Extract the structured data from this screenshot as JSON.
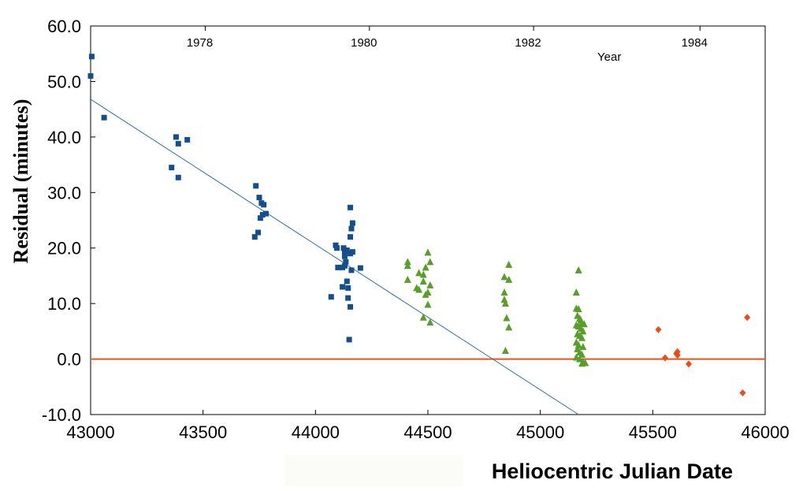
{
  "chart_data": {
    "type": "scatter",
    "title": "",
    "xlabel": "Heliocentric Julian Date",
    "ylabel": "Residual (minutes)",
    "top_axis_label": "Year",
    "xlim": [
      43000,
      46000
    ],
    "ylim": [
      -10,
      60
    ],
    "x_ticks": [
      43000,
      43500,
      44000,
      44500,
      45000,
      45500,
      46000
    ],
    "y_ticks": [
      "60.0",
      "50.0",
      "40.0",
      "30.0",
      "20.0",
      "10.0",
      "0.0",
      "-10.0"
    ],
    "year_ticks": [
      {
        "label": "1978",
        "x": 43510
      },
      {
        "label": "1980",
        "x": 44240
      },
      {
        "label": "1982",
        "x": 44970
      },
      {
        "label": "1984",
        "x": 45710
      }
    ],
    "zero_line": {
      "y": 0,
      "color": "#e8551e"
    },
    "fit_line": {
      "x": [
        43000,
        45170
      ],
      "y": [
        46.8,
        -10
      ],
      "color": "#2e6fa8"
    },
    "series": [
      {
        "name": "blue-squares",
        "marker": "square",
        "color": "#124f8c",
        "points": [
          [
            43005,
            54.5
          ],
          [
            43000,
            51
          ],
          [
            43060,
            43.5
          ],
          [
            43380,
            40
          ],
          [
            43390,
            38.8
          ],
          [
            43430,
            39.5
          ],
          [
            43360,
            34.5
          ],
          [
            43390,
            32.7
          ],
          [
            43735,
            31.2
          ],
          [
            43750,
            29.1
          ],
          [
            43760,
            28.1
          ],
          [
            43770,
            27.8
          ],
          [
            43780,
            26.2
          ],
          [
            43765,
            26
          ],
          [
            43755,
            25.4
          ],
          [
            43745,
            22.8
          ],
          [
            43730,
            22
          ],
          [
            44090,
            20.5
          ],
          [
            44095,
            20
          ],
          [
            44125,
            20
          ],
          [
            44130,
            19.3
          ],
          [
            44140,
            19.6
          ],
          [
            44155,
            19
          ],
          [
            44165,
            19.3
          ],
          [
            44155,
            22
          ],
          [
            44155,
            27.3
          ],
          [
            44165,
            24.5
          ],
          [
            44160,
            23.5
          ],
          [
            44130,
            18.5
          ],
          [
            44135,
            17.5
          ],
          [
            44130,
            16.8
          ],
          [
            44120,
            16.5
          ],
          [
            44100,
            16.5
          ],
          [
            44160,
            16
          ],
          [
            44200,
            16.4
          ],
          [
            44140,
            14
          ],
          [
            44120,
            13
          ],
          [
            44145,
            12.8
          ],
          [
            44070,
            11.2
          ],
          [
            44145,
            11
          ],
          [
            44155,
            9.4
          ],
          [
            44150,
            3.5
          ]
        ]
      },
      {
        "name": "green-triangles",
        "marker": "triangle",
        "color": "#5a9e2a",
        "points": [
          [
            44410,
            17.5
          ],
          [
            44410,
            16.8
          ],
          [
            44410,
            14.3
          ],
          [
            44450,
            12.8
          ],
          [
            44460,
            12.5
          ],
          [
            44460,
            15.5
          ],
          [
            44480,
            15.2
          ],
          [
            44480,
            14
          ],
          [
            44490,
            16.5
          ],
          [
            44490,
            11.6
          ],
          [
            44500,
            19.2
          ],
          [
            44510,
            17.5
          ],
          [
            44510,
            13.3
          ],
          [
            44500,
            12
          ],
          [
            44500,
            9.8
          ],
          [
            44480,
            7.5
          ],
          [
            44510,
            6.6
          ],
          [
            44840,
            14.8
          ],
          [
            44840,
            12
          ],
          [
            44840,
            10.7
          ],
          [
            44845,
            10
          ],
          [
            44850,
            7.4
          ],
          [
            44860,
            17
          ],
          [
            44860,
            14.3
          ],
          [
            44860,
            5.7
          ],
          [
            44845,
            1.5
          ],
          [
            45170,
            16
          ],
          [
            45160,
            12
          ],
          [
            45160,
            9.1
          ],
          [
            45170,
            9
          ],
          [
            45165,
            7.8
          ],
          [
            45175,
            7.3
          ],
          [
            45180,
            7
          ],
          [
            45185,
            6.5
          ],
          [
            45195,
            6.3
          ],
          [
            45160,
            6.1
          ],
          [
            45170,
            5.9
          ],
          [
            45180,
            5.5
          ],
          [
            45190,
            5
          ],
          [
            45165,
            4.5
          ],
          [
            45175,
            4.2
          ],
          [
            45185,
            3.8
          ],
          [
            45160,
            3
          ],
          [
            45170,
            2.5
          ],
          [
            45190,
            2.2
          ],
          [
            45165,
            1.8
          ],
          [
            45175,
            1.2
          ],
          [
            45185,
            0.8
          ],
          [
            45160,
            0.3
          ],
          [
            45175,
            0
          ],
          [
            45190,
            -0.5
          ],
          [
            45200,
            -0.7
          ],
          [
            45185,
            -0.8
          ]
        ]
      },
      {
        "name": "orange-diamonds",
        "marker": "diamond",
        "color": "#f04b14",
        "points": [
          [
            45525,
            5.3
          ],
          [
            45555,
            0.2
          ],
          [
            45605,
            1
          ],
          [
            45610,
            1.3
          ],
          [
            45610,
            0.7
          ],
          [
            45660,
            -0.9
          ],
          [
            45900,
            -6.1
          ],
          [
            45920,
            7.5
          ]
        ]
      }
    ]
  }
}
